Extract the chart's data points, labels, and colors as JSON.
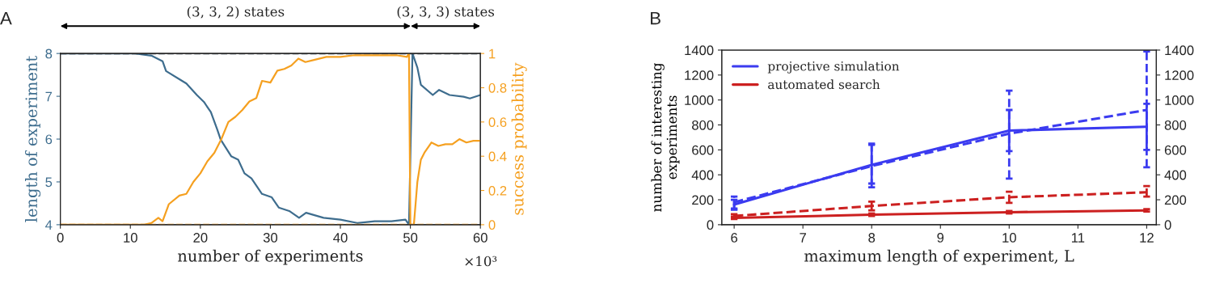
{
  "chart_data": [
    {
      "type": "line",
      "xlabel": "number of experiments",
      "ylabel": "length of experiment",
      "y2label": "success probability",
      "xlim": [
        0,
        60
      ],
      "xticks": [
        0,
        10,
        20,
        30,
        40,
        50,
        60
      ],
      "ylim": [
        4,
        8
      ],
      "yticks": [
        4,
        5,
        6,
        7,
        8
      ],
      "y2lim": [
        0,
        1
      ],
      "y2ticks": [
        0,
        0.2,
        0.4,
        0.6,
        0.8,
        1
      ],
      "grid": false,
      "legend": false,
      "annotations": [
        "A",
        "×10³",
        "(3, 3, 2) states",
        "(3, 3, 3) states"
      ],
      "ref_lines": [
        {
          "axis": "y",
          "value": 8,
          "color": "#2b3b4a",
          "line_style": "dashed"
        },
        {
          "axis": "y2",
          "value": 0,
          "color": "#f0a030",
          "line_style": "dashed"
        }
      ],
      "series": [
        {
          "color": "#3e6d8e",
          "x": [
            0,
            5,
            10.7,
            13,
            14.6,
            15.1,
            17.1,
            18,
            19.5,
            20.5,
            21.5,
            22.4,
            22.9,
            24.4,
            25.4,
            26.3,
            27.3,
            28.8,
            30.2,
            31.2,
            32.7,
            34.1,
            35.1,
            37.6,
            40,
            42.4,
            44.9,
            47.3,
            49.3,
            49.8,
            50.3,
            51,
            51.5,
            53.2,
            54.1,
            55.6,
            57.6,
            58.5,
            60
          ],
          "values": [
            8,
            8,
            8,
            7.95,
            7.82,
            7.59,
            7.39,
            7.3,
            7.03,
            6.87,
            6.63,
            6.23,
            5.99,
            5.6,
            5.52,
            5.2,
            5.08,
            4.72,
            4.64,
            4.4,
            4.32,
            4.16,
            4.28,
            4.16,
            4.12,
            4.04,
            4.08,
            4.08,
            4.12,
            4.0,
            8.0,
            7.67,
            7.27,
            7.03,
            7.15,
            7.03,
            6.99,
            6.95,
            7.03
          ]
        },
        {
          "color": "#f5a020",
          "axis": "y2",
          "x": [
            0,
            5,
            12,
            13,
            14,
            14.6,
            15.5,
            17,
            18,
            19,
            20,
            21,
            22,
            23,
            24,
            25,
            26,
            27,
            28,
            28.8,
            30,
            31,
            32,
            33,
            34,
            35,
            36,
            38,
            40,
            42,
            45,
            48,
            49.5,
            49.8,
            50,
            50.5,
            51,
            51.5,
            52,
            53,
            54,
            55,
            56,
            57,
            58,
            59,
            60
          ],
          "values": [
            0,
            0,
            0,
            0.01,
            0.04,
            0.02,
            0.12,
            0.17,
            0.18,
            0.25,
            0.3,
            0.37,
            0.42,
            0.5,
            0.6,
            0.63,
            0.67,
            0.72,
            0.74,
            0.84,
            0.83,
            0.9,
            0.91,
            0.93,
            0.97,
            0.95,
            0.96,
            0.98,
            0.98,
            0.99,
            0.99,
            0.99,
            0.98,
            1.0,
            0.0,
            0.0,
            0.25,
            0.38,
            0.42,
            0.48,
            0.46,
            0.47,
            0.47,
            0.5,
            0.48,
            0.49,
            0.49
          ]
        }
      ]
    },
    {
      "type": "line",
      "xlabel": "maximum length of experiment, L",
      "ylabel": "number of interesting\nexperiments",
      "xlim": [
        5.82,
        12.14
      ],
      "xticks": [
        6,
        7,
        8,
        9,
        10,
        11,
        12
      ],
      "ylim": [
        0,
        1400
      ],
      "yticks": [
        0,
        200,
        400,
        600,
        800,
        1000,
        1200,
        1400
      ],
      "y2lim": [
        0,
        1400
      ],
      "y2ticks": [
        0,
        200,
        400,
        600,
        800,
        1000,
        1200,
        1400
      ],
      "grid": false,
      "legend": "top left",
      "annotations": [
        "B"
      ],
      "series": [
        {
          "name": "projective simulation",
          "color": "#3b3bf0",
          "line_style": "solid",
          "x": [
            6,
            8,
            10,
            12
          ],
          "values": [
            161,
            480,
            755,
            785
          ],
          "errors": [
            [
              130,
              200
            ],
            [
              330,
              640
            ],
            [
              590,
              920
            ],
            [
              600,
              970
            ]
          ]
        },
        {
          "name": "automated search",
          "color": "#cc2020",
          "line_style": "solid",
          "x": [
            6,
            8,
            10,
            12
          ],
          "values": [
            55,
            80,
            100,
            115
          ],
          "errors": [
            [
              45,
              65
            ],
            [
              70,
              90
            ],
            [
              90,
              110
            ],
            [
              105,
              125
            ]
          ]
        },
        {
          "color": "#3b3bf0",
          "line_style": "dashed",
          "x": [
            6,
            8,
            10,
            12
          ],
          "values": [
            180,
            470,
            730,
            920
          ],
          "errors": [
            [
              120,
              225
            ],
            [
              300,
              650
            ],
            [
              370,
              1075
            ],
            [
              460,
              1390
            ]
          ]
        },
        {
          "color": "#cc2020",
          "line_style": "dashed",
          "x": [
            6,
            8,
            10,
            12
          ],
          "values": [
            70,
            150,
            220,
            260
          ],
          "errors": [
            [
              55,
              85
            ],
            [
              115,
              185
            ],
            [
              175,
              265
            ],
            [
              225,
              310
            ]
          ]
        }
      ]
    }
  ]
}
